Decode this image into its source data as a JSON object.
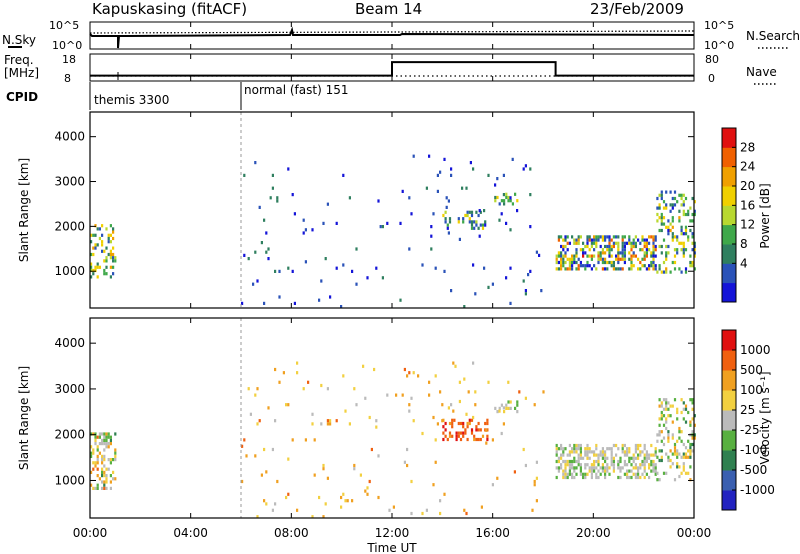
{
  "header": {
    "station": "Kapuskasing (fitACF)",
    "beam": "Beam 14",
    "date": "23/Feb/2009"
  },
  "top_panels": {
    "nsky_label": "N.Sky",
    "nsky_ticks": [
      "10^5",
      "10^0"
    ],
    "nsearch_label": "N.Search",
    "nsearch_ticks": [
      "10^5",
      "10^0"
    ],
    "freq_label_1": "Freq.",
    "freq_label_2": "[MHz]",
    "freq_ticks": [
      "18",
      "8"
    ],
    "nave_label": "Nave",
    "nave_ticks": [
      "80",
      "0"
    ],
    "cpid_label": "CPID",
    "cpid_entries": [
      {
        "text": "themis 3300",
        "start_hour": 0
      },
      {
        "text": "normal (fast) 151",
        "start_hour": 6
      }
    ]
  },
  "colorbars": {
    "power": {
      "label": "Power [dB]",
      "tick_labels": [
        "28",
        "24",
        "20",
        "16",
        "12",
        "8",
        "4"
      ],
      "colors": [
        "#1414d8",
        "#2a52b8",
        "#2f7f5f",
        "#3fa84a",
        "#b8d830",
        "#f0d000",
        "#f0a000",
        "#f06000",
        "#e01010"
      ]
    },
    "velocity": {
      "label": "Velocity [m s⁻¹]",
      "tick_labels": [
        "1000",
        "500",
        "100",
        "25",
        "-25",
        "-100",
        "-500",
        "-1000"
      ],
      "colors": [
        "#2222c0",
        "#3a5fb0",
        "#2f8050",
        "#58b040",
        "#bbbbbb",
        "#f2d040",
        "#f0a020",
        "#f06010",
        "#e01010"
      ]
    }
  },
  "chart_data": [
    {
      "type": "heatmap",
      "name": "power",
      "ylabel": "Slant Range [km]",
      "ylim": [
        180,
        4550
      ],
      "y_ticks": [
        "1000",
        "2000",
        "3000",
        "4000"
      ],
      "xlim": [
        0,
        24
      ],
      "x_ticks": [
        "00:00",
        "04:00",
        "08:00",
        "12:00",
        "16:00",
        "20:00",
        "00:00"
      ],
      "patches": [
        {
          "hours": [
            0.0,
            1.0
          ],
          "range_km": [
            850,
            2050
          ],
          "density": 0.35,
          "levels": [
            0.1,
            0.7
          ]
        },
        {
          "hours": [
            14.0,
            15.8
          ],
          "range_km": [
            1950,
            2350
          ],
          "density": 0.3,
          "levels": [
            0.1,
            0.6
          ]
        },
        {
          "hours": [
            15.8,
            17.0
          ],
          "range_km": [
            2500,
            2750
          ],
          "density": 0.35,
          "levels": [
            0.2,
            0.6
          ]
        },
        {
          "hours": [
            18.5,
            22.5
          ],
          "range_km": [
            1050,
            1800
          ],
          "density": 0.55,
          "levels": [
            0.0,
            0.9
          ]
        },
        {
          "hours": [
            22.5,
            24.0
          ],
          "range_km": [
            1000,
            2800
          ],
          "density": 0.3,
          "levels": [
            0.1,
            0.7
          ]
        },
        {
          "hours": [
            6.0,
            18.0
          ],
          "range_km": [
            200,
            3600
          ],
          "density": 0.02,
          "levels": [
            0.0,
            0.3
          ]
        }
      ]
    },
    {
      "type": "heatmap",
      "name": "velocity",
      "ylabel": "Slant Range [km]",
      "xlabel": "Time UT",
      "ylim": [
        180,
        4550
      ],
      "y_ticks": [
        "1000",
        "2000",
        "3000",
        "4000"
      ],
      "xlim": [
        0,
        24
      ],
      "x_ticks": [
        "00:00",
        "04:00",
        "08:00",
        "12:00",
        "16:00",
        "20:00",
        "00:00"
      ],
      "patches": [
        {
          "hours": [
            0.0,
            1.0
          ],
          "range_km": [
            850,
            2050
          ],
          "density": 0.35,
          "levels": [
            0.3,
            0.8
          ]
        },
        {
          "hours": [
            14.0,
            15.8
          ],
          "range_km": [
            1900,
            2350
          ],
          "density": 0.35,
          "levels": [
            0.75,
            1.0
          ]
        },
        {
          "hours": [
            15.8,
            17.0
          ],
          "range_km": [
            2500,
            2750
          ],
          "density": 0.3,
          "levels": [
            0.3,
            0.6
          ]
        },
        {
          "hours": [
            18.5,
            22.5
          ],
          "range_km": [
            1050,
            1800
          ],
          "density": 0.55,
          "levels": [
            0.4,
            0.6
          ]
        },
        {
          "hours": [
            22.5,
            24.0
          ],
          "range_km": [
            1000,
            2800
          ],
          "density": 0.3,
          "levels": [
            0.3,
            0.7
          ]
        },
        {
          "hours": [
            6.0,
            18.0
          ],
          "range_km": [
            200,
            3600
          ],
          "density": 0.02,
          "levels": [
            0.5,
            0.8
          ]
        }
      ]
    },
    {
      "type": "line",
      "name": "frequency",
      "ylabel": "Freq. [MHz]",
      "ylim": [
        8,
        18
      ],
      "series": [
        {
          "x": [
            0,
            12,
            12,
            18.5,
            18.5,
            24
          ],
          "y": [
            10,
            10,
            15,
            15,
            10,
            10
          ]
        }
      ]
    }
  ]
}
